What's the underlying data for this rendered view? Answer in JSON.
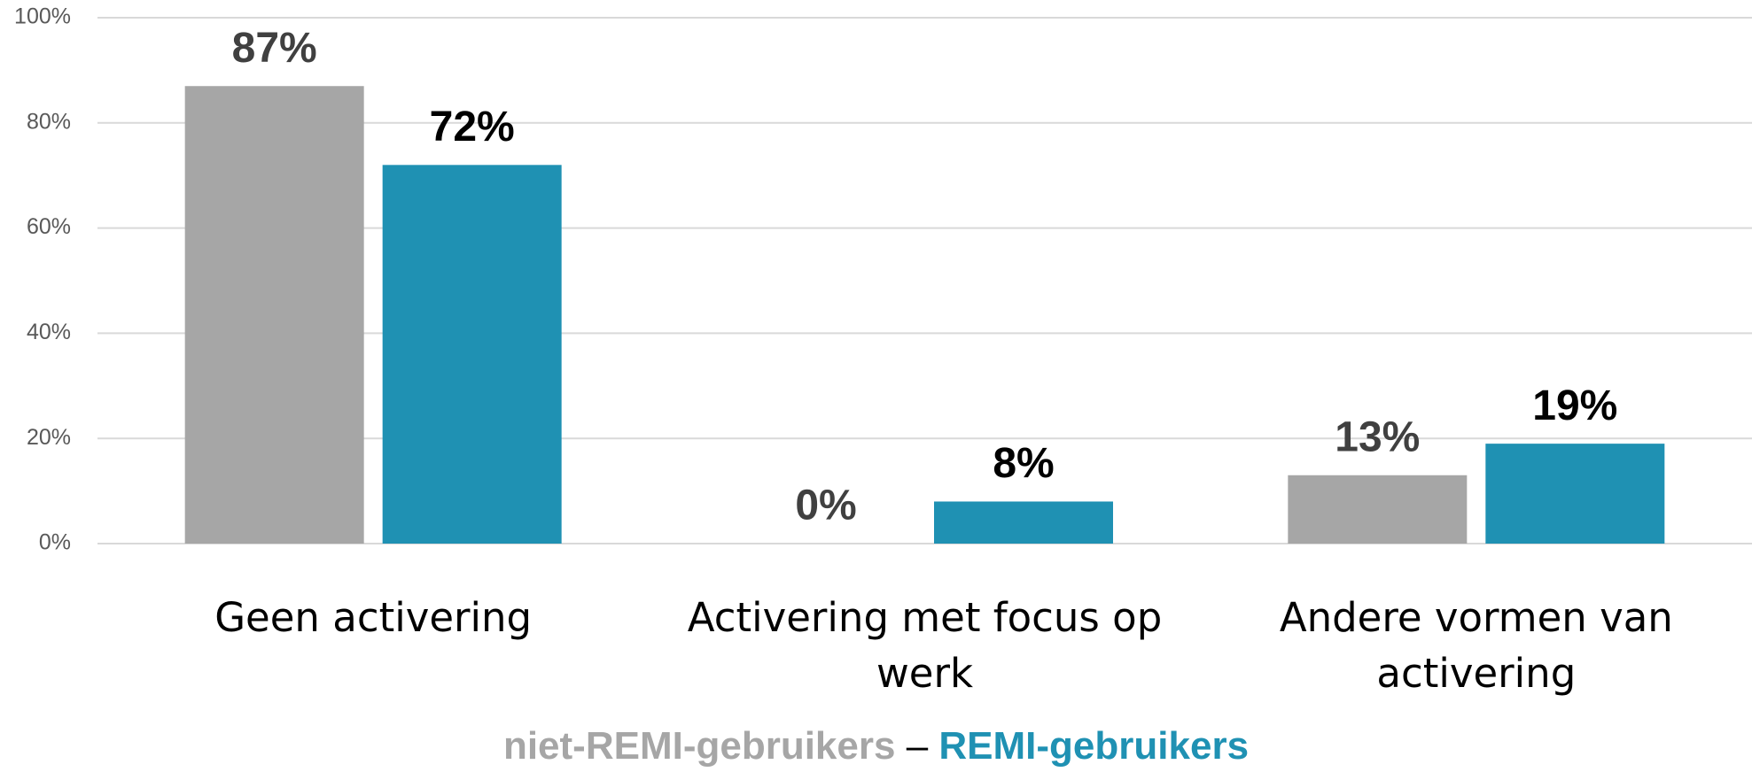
{
  "chart_data": {
    "type": "bar",
    "categories": [
      "Geen activering",
      "Activering met focus op werk",
      "Andere vormen van activering"
    ],
    "series": [
      {
        "name": "niet-REMI-gebruikers",
        "color": "#a6a6a6",
        "label_color": "#404040",
        "values": [
          87,
          0,
          13
        ],
        "value_labels": [
          "87%",
          "0%",
          "13%"
        ]
      },
      {
        "name": "REMI-gebruikers",
        "color": "#1f91b3",
        "label_color": "#000000",
        "values": [
          72,
          8,
          19
        ],
        "value_labels": [
          "72%",
          "8%",
          "19%"
        ]
      }
    ],
    "legend_separator": "–",
    "ylim": [
      0,
      100
    ],
    "yticks": [
      {
        "value": 0,
        "label": "0%"
      },
      {
        "value": 20,
        "label": "20%"
      },
      {
        "value": 40,
        "label": "40%"
      },
      {
        "value": 60,
        "label": "60%"
      },
      {
        "value": 80,
        "label": "80%"
      },
      {
        "value": 100,
        "label": "100%"
      }
    ],
    "grid": true
  }
}
